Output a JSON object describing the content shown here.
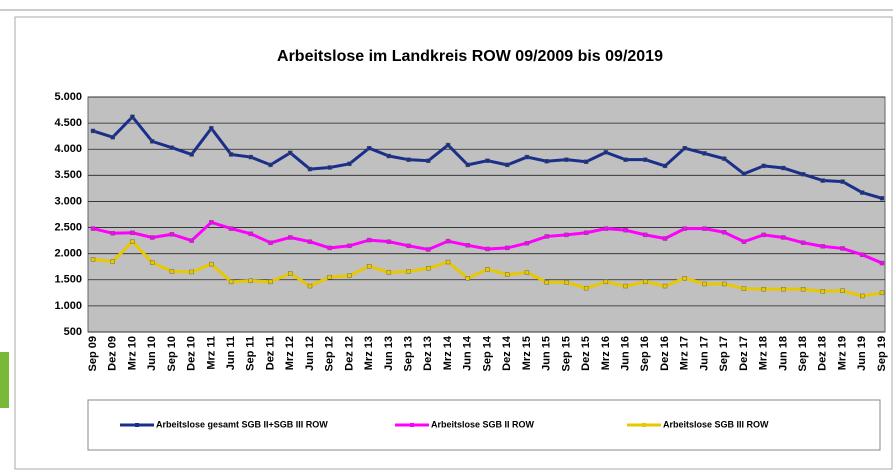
{
  "chart_data": {
    "type": "line",
    "title": "Arbeitslose im Landkreis ROW 09/2009 bis 09/2019",
    "categories": [
      "Sep 09",
      "Dez 09",
      "Mrz 10",
      "Jun 10",
      "Sep 10",
      "Dez 10",
      "Mrz 11",
      "Jun 11",
      "Sep 11",
      "Dez 11",
      "Mrz 12",
      "Jun 12",
      "Sep 12",
      "Dez 12",
      "Mrz 13",
      "Jun 13",
      "Sep 13",
      "Dez 13",
      "Mrz 14",
      "Jun 14",
      "Sep 14",
      "Dez 14",
      "Mrz 15",
      "Jun 15",
      "Sep 15",
      "Dez 15",
      "Mrz 16",
      "Jun 16",
      "Sep 16",
      "Dez 16",
      "Mrz 17",
      "Jun 17",
      "Sep 17",
      "Dez 17",
      "Mrz 18",
      "Jun 18",
      "Sep 18",
      "Dez 18",
      "Mrz 19",
      "Jun 19",
      "Sep 19"
    ],
    "series": [
      {
        "name": "Arbeitslose gesamt SGB II+SGB III  ROW",
        "color": "#1a2f8a",
        "values": [
          4350,
          4230,
          4620,
          4150,
          4030,
          3900,
          4400,
          3900,
          3850,
          3700,
          3930,
          3620,
          3650,
          3720,
          4020,
          3870,
          3800,
          3780,
          4080,
          3700,
          3780,
          3700,
          3850,
          3770,
          3800,
          3760,
          3940,
          3800,
          3800,
          3680,
          4020,
          3920,
          3820,
          3530,
          3680,
          3640,
          3520,
          3400,
          3380,
          3170,
          3060
        ]
      },
      {
        "name": "Arbeitslose SGB II  ROW",
        "color": "#ff00ff",
        "values": [
          2480,
          2390,
          2400,
          2310,
          2370,
          2250,
          2600,
          2480,
          2380,
          2210,
          2310,
          2230,
          2110,
          2150,
          2260,
          2230,
          2150,
          2080,
          2240,
          2160,
          2090,
          2110,
          2200,
          2330,
          2360,
          2400,
          2480,
          2450,
          2360,
          2290,
          2480,
          2480,
          2410,
          2230,
          2360,
          2310,
          2210,
          2140,
          2100,
          1980,
          1820
        ]
      },
      {
        "name": "Arbeitslose SGB III  ROW",
        "color": "#e8c800",
        "values": [
          1890,
          1850,
          2230,
          1830,
          1660,
          1650,
          1800,
          1460,
          1480,
          1460,
          1620,
          1380,
          1550,
          1580,
          1760,
          1640,
          1660,
          1720,
          1840,
          1530,
          1700,
          1600,
          1640,
          1450,
          1450,
          1340,
          1460,
          1380,
          1460,
          1380,
          1530,
          1420,
          1420,
          1330,
          1320,
          1320,
          1320,
          1280,
          1290,
          1190,
          1250
        ]
      }
    ],
    "ylim": [
      500,
      5000
    ],
    "yticks": [
      500,
      {
        "value": 1000,
        "label": "1.000"
      },
      {
        "value": 1500,
        "label": "1.500"
      },
      {
        "value": 2000,
        "label": "2.000"
      },
      {
        "value": 2500,
        "label": "2.500"
      },
      {
        "value": 3000,
        "label": "3.000"
      },
      {
        "value": 3500,
        "label": "3.500"
      },
      {
        "value": 4000,
        "label": "4.000"
      },
      {
        "value": 4500,
        "label": "4.500"
      },
      {
        "value": 5000,
        "label": "5.000"
      }
    ],
    "grid": true,
    "legend": "bottom",
    "plot_background": "#c0c0c0"
  }
}
